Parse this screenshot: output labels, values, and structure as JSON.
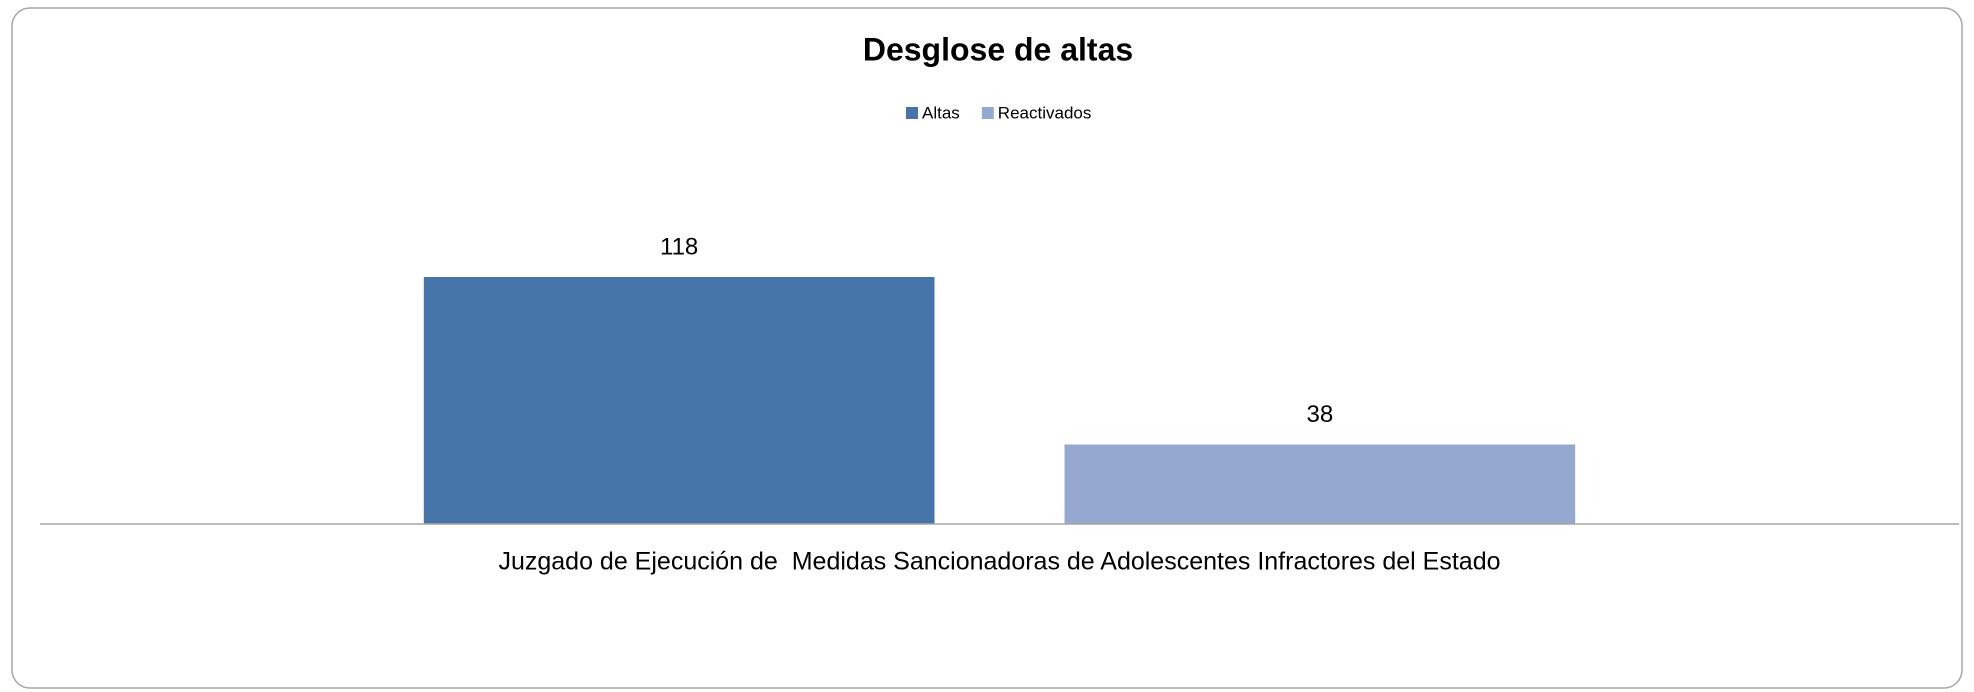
{
  "chart_data": {
    "type": "bar",
    "title": "Desglose de altas",
    "categories": [
      "Juzgado de Ejecución de  Medidas Sancionadoras de Adolescentes Infractores del Estado"
    ],
    "series": [
      {
        "name": "Altas",
        "color": "#4674a8",
        "values": [
          118
        ]
      },
      {
        "name": "Reactivados",
        "color": "#95a9d0",
        "values": [
          38
        ]
      }
    ],
    "legend": "top"
  }
}
